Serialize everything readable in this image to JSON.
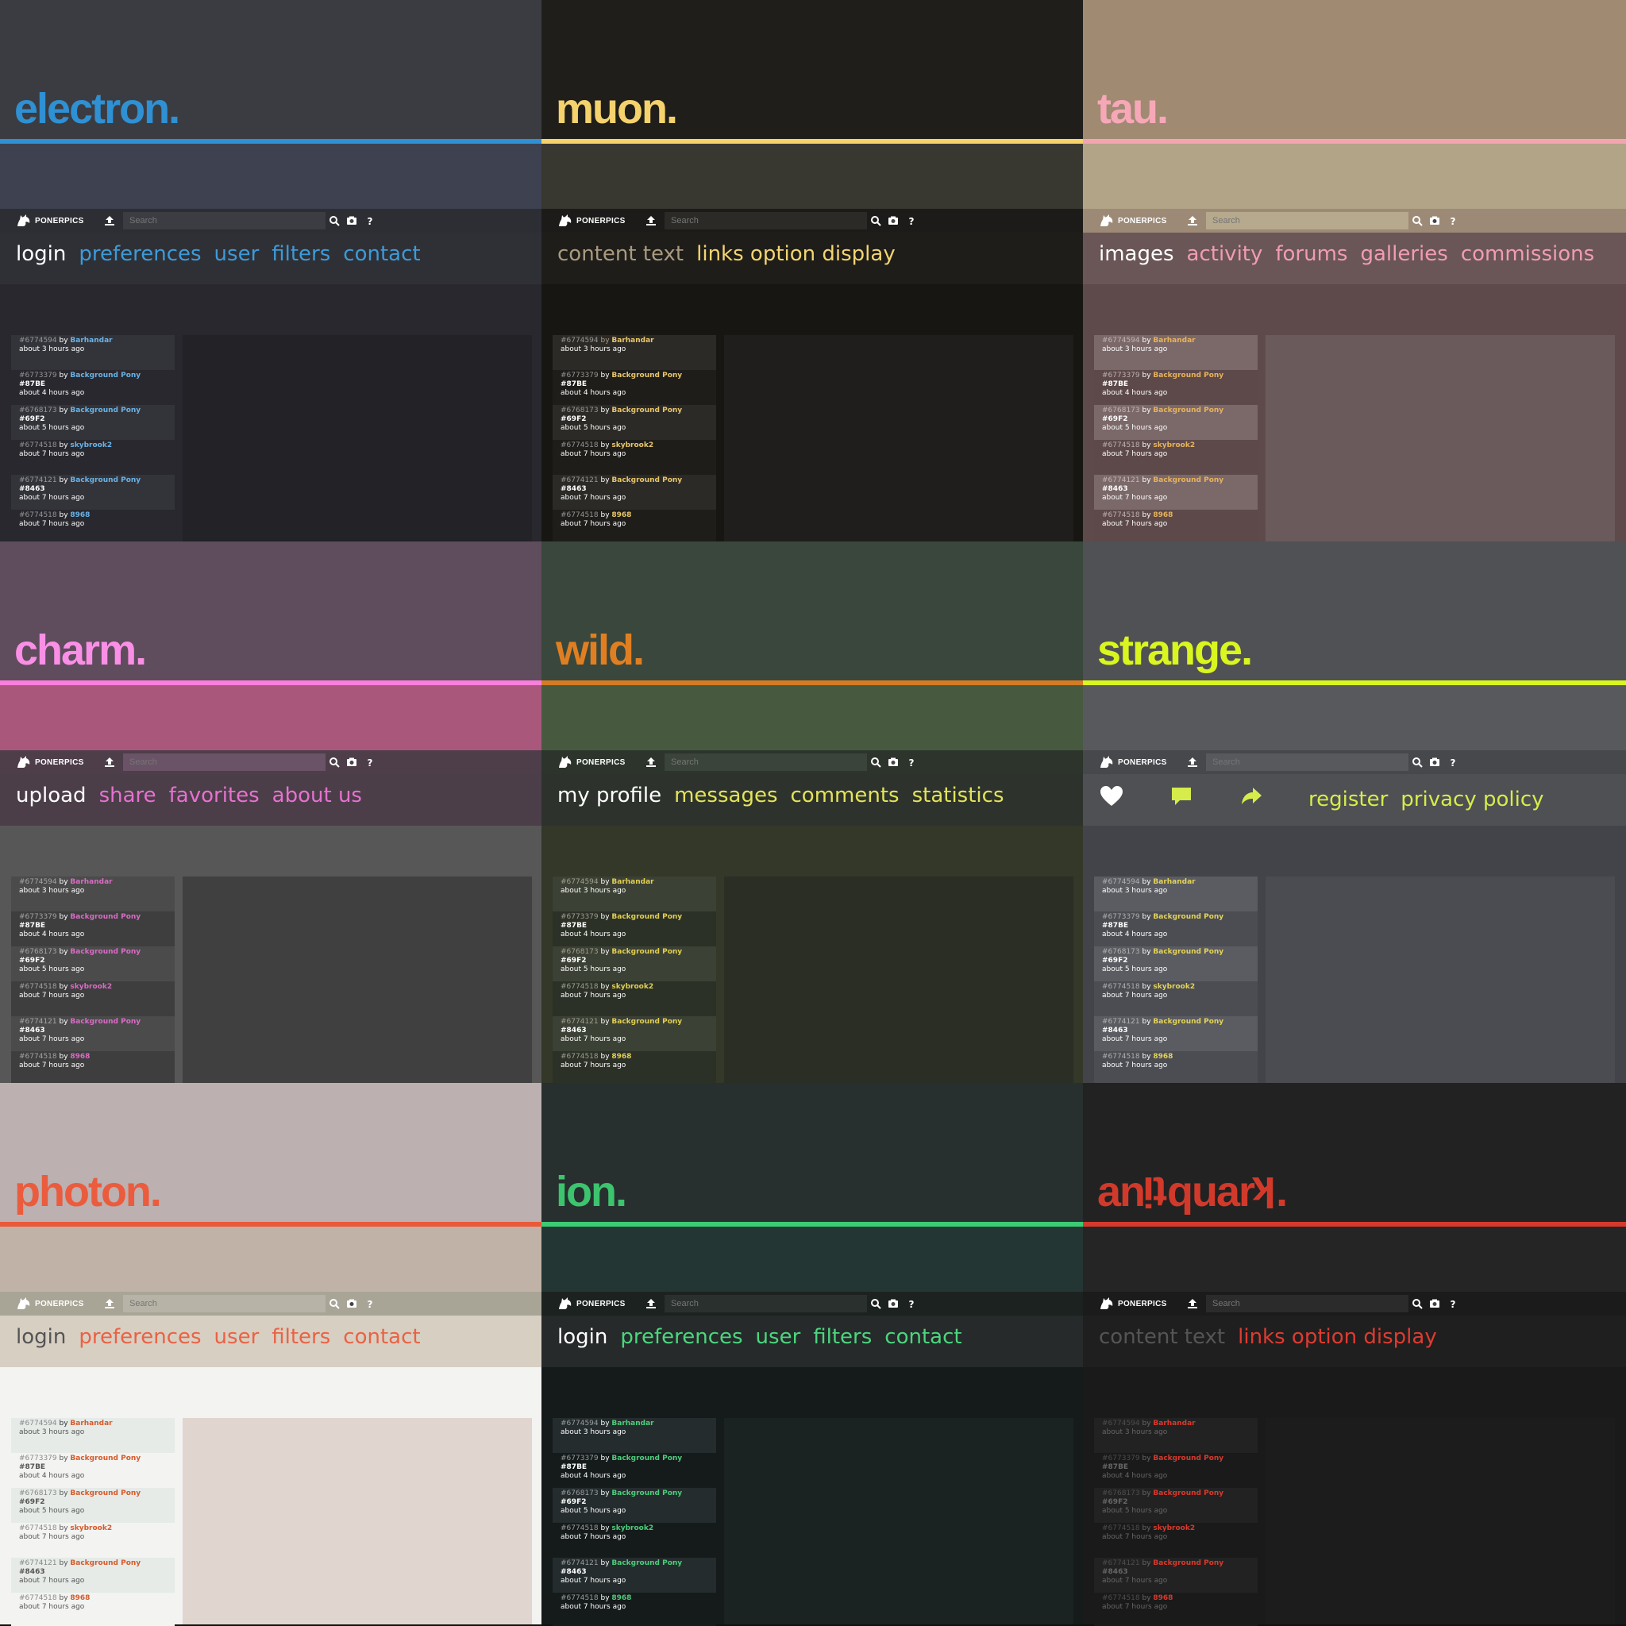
{
  "site": {
    "logo_text": "PONERPICS",
    "search_placeholder": "Search",
    "by_word": "by"
  },
  "icons": {
    "logo": "pony-head-logo-icon",
    "upload": "upload-icon",
    "search": "search-icon",
    "camera": "camera-icon",
    "help": "question-mark-icon",
    "heart": "heart-icon",
    "comment": "comment-icon",
    "share": "share-arrow-icon"
  },
  "feed": [
    {
      "id": "#6774594",
      "user": "Barhandar",
      "tag": "",
      "time": "about 3 hours ago"
    },
    {
      "id": "#6773379",
      "user": "Background Pony",
      "tag": "#87BE",
      "time": "about 4 hours ago"
    },
    {
      "id": "#6768173",
      "user": "Background Pony",
      "tag": "#69F2",
      "time": "about 5 hours ago"
    },
    {
      "id": "#6774518",
      "user": "skybrook2",
      "tag": "",
      "time": "about 7 hours ago"
    },
    {
      "id": "#6774121",
      "user": "Background Pony",
      "tag": "#8463",
      "time": "about 7 hours ago"
    },
    {
      "id": "#6774518",
      "user": "8968",
      "tag": "",
      "time": "about 7 hours ago"
    }
  ],
  "themes": [
    {
      "name": "electron",
      "suffix": ".",
      "colors": {
        "hero": "#3b3c42",
        "below": "#3d4150",
        "band": "#2f90d3",
        "title": "#2f90d3",
        "topbar": "#2d2e33",
        "search": "#3c3d43",
        "nav": "#2f3036",
        "page": "#28282e",
        "panel": "#222227",
        "feed_a": "#33343a",
        "feed_b": "#28282e",
        "first_item": "#ffffff",
        "accent": "#3c9bd9",
        "text": "#ffffff",
        "meta": "#a9a9a9",
        "user": "#6ab2e6"
      },
      "nav": [
        "login",
        "preferences",
        "user",
        "filters",
        "contact"
      ]
    },
    {
      "name": "muon",
      "suffix": ".",
      "colors": {
        "hero": "#1f1e1b",
        "below": "#383730",
        "band": "#f5d26c",
        "title": "#f5d26c",
        "topbar": "#1c1b19",
        "search": "#2b2a27",
        "nav": "#1f1d19",
        "page": "#171613",
        "panel": "#1f1e1c",
        "feed_a": "#2b2a26",
        "feed_b": "#1e1d1a",
        "first_item": "#a89a80",
        "accent": "#f3d571",
        "text": "#ffffff",
        "meta": "#a9a9a9",
        "user": "#e8c56a"
      },
      "nav": [
        "content text",
        "links option display"
      ]
    },
    {
      "name": "tau",
      "suffix": ".",
      "colors": {
        "hero": "#a08a72",
        "below": "#b2a486",
        "band": "#f2a5b1",
        "title": "#f7a8b8",
        "topbar": "#9d8a76",
        "search": "#b6a98d",
        "nav": "#6a5657",
        "page": "#5e4a4b",
        "panel": "#6b5a5b",
        "feed_a": "#7b6869",
        "feed_b": "#5d4949",
        "first_item": "#ffffff",
        "accent": "#f19cb2",
        "text": "#ffffff",
        "meta": "#d0c0c0",
        "user": "#e7b35c"
      },
      "nav": [
        "images",
        "activity",
        "forums",
        "galleries",
        "commissions"
      ]
    },
    {
      "name": "charm",
      "suffix": ".",
      "colors": {
        "hero": "#5f4c5d",
        "below": "#a9587c",
        "band": "#f97fdc",
        "title": "#fa8fe6",
        "topbar": "#4d3e4a",
        "search": "#6a5366",
        "nav": "#4b3e49",
        "page": "#575757",
        "panel": "#404040",
        "feed_a": "#4b4b4b",
        "feed_b": "#3e3e3e",
        "first_item": "#ffffff",
        "accent": "#e771d0",
        "text": "#ffffff",
        "meta": "#b5b5b5",
        "user": "#d86cc5"
      },
      "nav": [
        "upload",
        "share",
        "favorites",
        "about us"
      ]
    },
    {
      "name": "wild",
      "suffix": ".",
      "colors": {
        "hero": "#3a473c",
        "below": "#475a40",
        "band": "#d57b26",
        "title": "#e07f21",
        "topbar": "#2c342c",
        "search": "#3a443a",
        "nav": "#2d332c",
        "page": "#333829",
        "panel": "#2a2e24",
        "feed_a": "#3b4134",
        "feed_b": "#2c3127",
        "first_item": "#ffffff",
        "accent": "#e4e35a",
        "text": "#ffffff",
        "meta": "#b0b0a0",
        "user": "#e1cf52"
      },
      "nav": [
        "my profile",
        "messages",
        "comments",
        "statistics"
      ]
    },
    {
      "name": "strange",
      "suffix": ".",
      "colors": {
        "hero": "#505155",
        "below": "#58595d",
        "band": "#d9f61f",
        "title": "#d9f61f",
        "topbar": "#47484c",
        "search": "#58595d",
        "nav": "#4e5054",
        "page": "#424449",
        "panel": "#4a4c51",
        "feed_a": "#5a5c61",
        "feed_b": "#4b4d52",
        "first_item": "#ffffff",
        "accent": "#d6ec4a",
        "text": "#ffffff",
        "meta": "#c0c0c0",
        "user": "#e4d35a"
      },
      "nav": [
        "register",
        "privacy policy"
      ]
    },
    {
      "name": "photon",
      "suffix": ".",
      "colors": {
        "hero": "#bcb0b1",
        "below": "#c0b2a6",
        "band": "#ea5a3a",
        "title": "#ea5c3d",
        "topbar": "#a8a597",
        "search": "#b7b4a7",
        "nav": "#d7cfc2",
        "page": "#f3f3f1",
        "panel": "#e0d6cf",
        "feed_a": "#e6ebe8",
        "feed_b": "#f3f3f1",
        "first_item": "#333333",
        "accent": "#ea6244",
        "text": "#555555",
        "meta": "#777777",
        "user": "#d65a2b"
      },
      "nav": [
        "login",
        "preferences",
        "user",
        "filters",
        "contact"
      ]
    },
    {
      "name": "ion",
      "suffix": ".",
      "colors": {
        "hero": "#282f2f",
        "below": "#233633",
        "band": "#3cca74",
        "title": "#3cc46e",
        "topbar": "#1c2220",
        "search": "#2a302e",
        "nav": "#262a2a",
        "page": "#151b1b",
        "panel": "#1a2322",
        "feed_a": "#242c2d",
        "feed_b": "#151b1b",
        "first_item": "#ffffff",
        "accent": "#4bd67e",
        "text": "#ffffff",
        "meta": "#b0b0b0",
        "user": "#4ccd7a"
      },
      "nav": [
        "login",
        "preferences",
        "user",
        "filters",
        "contact"
      ]
    },
    {
      "name": "antiquark",
      "suffix": ".",
      "colors": {
        "hero": "#222222",
        "below": "#252525",
        "band": "#d43a2c",
        "title": "#d13a2b",
        "topbar": "#1b1b1b",
        "search": "#2b2b2b",
        "nav": "#1f1f1f",
        "page": "#1a1a1a",
        "panel": "#1c1c1c",
        "feed_a": "#222222",
        "feed_b": "#1a1a1a",
        "first_item": "#666666",
        "accent": "#de3b30",
        "text": "#666666",
        "meta": "#555555",
        "user": "#d8392c"
      },
      "nav": [
        "content text",
        "links option display"
      ]
    }
  ]
}
